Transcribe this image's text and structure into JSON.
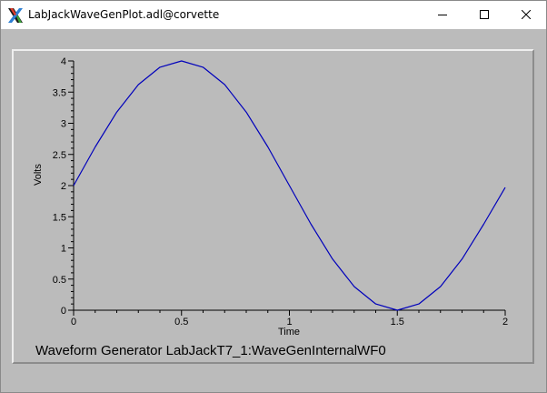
{
  "window": {
    "title": "LabJackWaveGenPlot.adl@corvette",
    "icon": "x-window-icon",
    "controls": [
      "minimize",
      "maximize",
      "close"
    ]
  },
  "plot": {
    "title": "Waveform Generator LabJackT7_1:WaveGenInternalWF0",
    "background": "#bbbbbb",
    "line_color": "#0000bb"
  },
  "chart_data": {
    "type": "line",
    "xlabel": "Time",
    "ylabel": "Volts",
    "xlim": [
      0,
      2
    ],
    "ylim": [
      0,
      4
    ],
    "x_ticks": [
      0,
      0.5,
      1,
      1.5,
      2
    ],
    "y_ticks": [
      0,
      0.5,
      1,
      1.5,
      2,
      2.5,
      3,
      3.5,
      4
    ],
    "series": [
      {
        "x": [
          0,
          0.1,
          0.2,
          0.3,
          0.4,
          0.5,
          0.6,
          0.7,
          0.8,
          0.9,
          1.0,
          1.1,
          1.2,
          1.3,
          1.4,
          1.5,
          1.6,
          1.7,
          1.8,
          1.9,
          2.0
        ],
        "values": [
          2.0,
          2.62,
          3.18,
          3.62,
          3.9,
          4.0,
          3.9,
          3.62,
          3.18,
          2.62,
          2.0,
          1.38,
          0.82,
          0.38,
          0.1,
          0.0,
          0.1,
          0.38,
          0.82,
          1.38,
          1.97
        ]
      }
    ]
  }
}
